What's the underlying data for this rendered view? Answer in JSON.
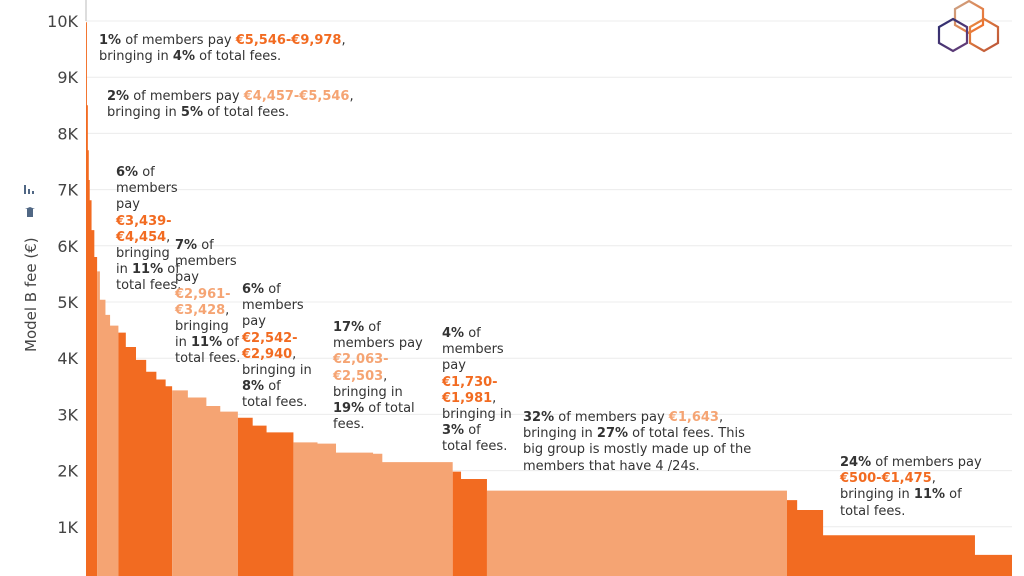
{
  "chart_data": {
    "type": "area",
    "ylabel": "Model B fee (€)",
    "ylim": [
      0,
      10000
    ],
    "yticks": [
      "0K",
      "1K",
      "2K",
      "3K",
      "4K",
      "5K",
      "6K",
      "7K",
      "8K",
      "9K",
      "10K"
    ],
    "grid": true,
    "colors": {
      "dark": "#f26b21",
      "light": "#f5a473",
      "text": "#333333",
      "grid": "#ececec"
    },
    "curve_x_unit": "percentile of members",
    "bands": [
      {
        "tone": "dark",
        "from": 0,
        "to": 1.2,
        "points": [
          [
            0,
            9978
          ],
          [
            0.1,
            8500
          ],
          [
            0.2,
            7700
          ],
          [
            0.3,
            7170
          ],
          [
            0.4,
            6810
          ],
          [
            0.6,
            6280
          ],
          [
            0.9,
            5800
          ],
          [
            1.2,
            5546
          ]
        ]
      },
      {
        "tone": "light",
        "from": 1.2,
        "to": 3.5,
        "points": [
          [
            1.2,
            5546
          ],
          [
            1.5,
            5040
          ],
          [
            2.1,
            4770
          ],
          [
            2.6,
            4580
          ],
          [
            3.5,
            4457
          ]
        ]
      },
      {
        "tone": "dark",
        "from": 3.5,
        "to": 9.3,
        "points": [
          [
            3.5,
            4454
          ],
          [
            4.3,
            4200
          ],
          [
            5.4,
            3970
          ],
          [
            6.5,
            3760
          ],
          [
            7.6,
            3620
          ],
          [
            8.6,
            3500
          ],
          [
            9.3,
            3439
          ]
        ]
      },
      {
        "tone": "light",
        "from": 9.3,
        "to": 16.4,
        "points": [
          [
            9.3,
            3428
          ],
          [
            11,
            3300
          ],
          [
            13,
            3150
          ],
          [
            14.5,
            3050
          ],
          [
            16.4,
            2961
          ]
        ]
      },
      {
        "tone": "dark",
        "from": 16.4,
        "to": 22.4,
        "points": [
          [
            16.4,
            2940
          ],
          [
            18,
            2800
          ],
          [
            19.5,
            2680
          ],
          [
            22.4,
            2542
          ]
        ]
      },
      {
        "tone": "light",
        "from": 22.4,
        "to": 39.6,
        "points": [
          [
            22.4,
            2503
          ],
          [
            25,
            2480
          ],
          [
            27,
            2320
          ],
          [
            31,
            2300
          ],
          [
            32,
            2150
          ],
          [
            39.6,
            2063
          ]
        ]
      },
      {
        "tone": "dark",
        "from": 39.6,
        "to": 43.3,
        "points": [
          [
            39.6,
            1981
          ],
          [
            40.5,
            1850
          ],
          [
            43.3,
            1730
          ]
        ]
      },
      {
        "tone": "light",
        "from": 43.3,
        "to": 75.7,
        "points": [
          [
            43.3,
            1643
          ],
          [
            75.7,
            1643
          ]
        ]
      },
      {
        "tone": "dark",
        "from": 75.7,
        "to": 100,
        "points": [
          [
            75.7,
            1475
          ],
          [
            76.8,
            1300
          ],
          [
            79.6,
            850
          ],
          [
            96,
            500
          ],
          [
            100,
            500
          ]
        ]
      }
    ],
    "annotations": [
      {
        "parts": [
          {
            "t": "1%",
            "s": "b"
          },
          {
            "t": " of members pay "
          },
          {
            "t": "€5,546-€9,978",
            "s": "dark"
          },
          {
            "t": ", bringing in "
          },
          {
            "t": "4%",
            "s": "b"
          },
          {
            "t": " of total fees."
          }
        ]
      },
      {
        "parts": [
          {
            "t": "2%",
            "s": "b"
          },
          {
            "t": " of members pay "
          },
          {
            "t": "€4,457-€5,546",
            "s": "light"
          },
          {
            "t": ", bringing in "
          },
          {
            "t": "5%",
            "s": "b"
          },
          {
            "t": " of total fees."
          }
        ]
      },
      {
        "parts": [
          {
            "t": "6%",
            "s": "b"
          },
          {
            "t": " of members pay "
          },
          {
            "t": "€3,439- €4,454",
            "s": "dark"
          },
          {
            "t": ", bringing in "
          },
          {
            "t": "11%",
            "s": "b"
          },
          {
            "t": " of total fees."
          }
        ]
      },
      {
        "parts": [
          {
            "t": "7%",
            "s": "b"
          },
          {
            "t": " of members pay "
          },
          {
            "t": "€2,961- €3,428",
            "s": "light"
          },
          {
            "t": ", bringing in "
          },
          {
            "t": "11%",
            "s": "b"
          },
          {
            "t": " of total fees."
          }
        ]
      },
      {
        "parts": [
          {
            "t": "6%",
            "s": "b"
          },
          {
            "t": " of members pay "
          },
          {
            "t": "€2,542- €2,940",
            "s": "dark"
          },
          {
            "t": ", bringing in "
          },
          {
            "t": "8%",
            "s": "b"
          },
          {
            "t": " of total fees."
          }
        ]
      },
      {
        "parts": [
          {
            "t": "17%",
            "s": "b"
          },
          {
            "t": " of members pay "
          },
          {
            "t": "€2,063- €2,503",
            "s": "light"
          },
          {
            "t": ", bringing in "
          },
          {
            "t": "19%",
            "s": "b"
          },
          {
            "t": " of total fees."
          }
        ]
      },
      {
        "parts": [
          {
            "t": "4%",
            "s": "b"
          },
          {
            "t": " of members pay "
          },
          {
            "t": "€1,730- €1,981",
            "s": "dark"
          },
          {
            "t": ", bringing in "
          },
          {
            "t": "3%",
            "s": "b"
          },
          {
            "t": " of total fees."
          }
        ]
      },
      {
        "parts": [
          {
            "t": "32%",
            "s": "b"
          },
          {
            "t": " of members pay "
          },
          {
            "t": "€1,643",
            "s": "light"
          },
          {
            "t": ", bringing in "
          },
          {
            "t": "27%",
            "s": "b"
          },
          {
            "t": " of total fees. This big group is mostly made up of the members that have 4 /24s."
          }
        ]
      },
      {
        "parts": [
          {
            "t": "24%",
            "s": "b"
          },
          {
            "t": " of members pay "
          },
          {
            "t": "€500-€1,475",
            "s": "dark"
          },
          {
            "t": ", bringing in "
          },
          {
            "t": "11%",
            "s": "b"
          },
          {
            "t": " of total fees."
          }
        ]
      }
    ]
  },
  "icons": {
    "pin": "pin-icon",
    "chart": "bar-chart-icon",
    "logo": "hexagon-logo"
  }
}
